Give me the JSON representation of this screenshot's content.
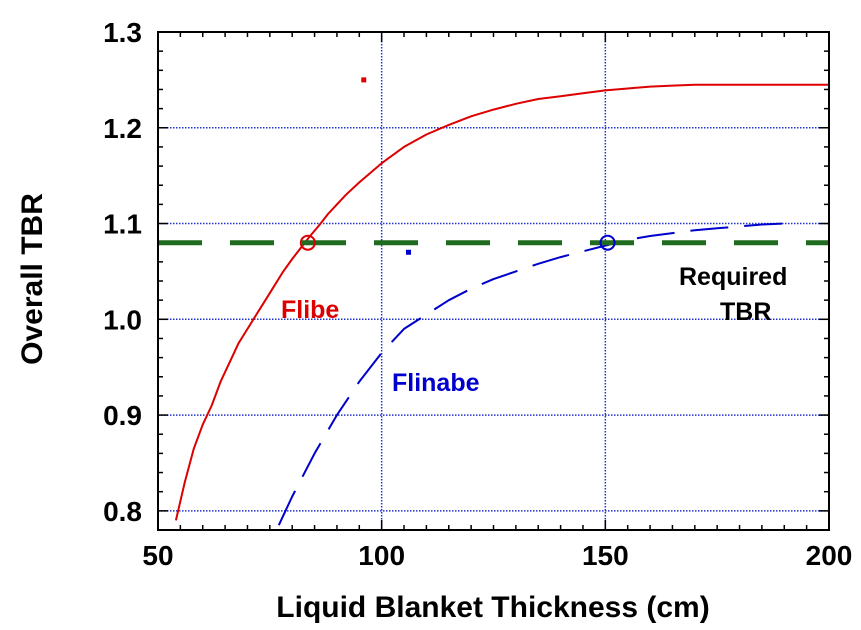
{
  "chart_data": {
    "type": "line",
    "xlabel": "Liquid Blanket Thickness (cm)",
    "ylabel": "Overall TBR",
    "xlim": [
      50,
      200
    ],
    "ylim": [
      0.78,
      1.3
    ],
    "x_ticks": [
      50,
      100,
      150,
      200
    ],
    "x_tick_labels": [
      "50",
      "100",
      "150",
      "200"
    ],
    "y_ticks": [
      0.8,
      0.9,
      1.0,
      1.1,
      1.2,
      1.3
    ],
    "y_tick_labels": [
      "0.8",
      "0.9",
      "1.0",
      "1.1",
      "1.2",
      "1.3"
    ],
    "grid": true,
    "series": [
      {
        "name": "Flibe",
        "color": "#dd0000",
        "style": "solid",
        "x": [
          54,
          56,
          58,
          60,
          62,
          64,
          66,
          68,
          70,
          72,
          74,
          76,
          78,
          80,
          82,
          84,
          86,
          88,
          90,
          92,
          95,
          100,
          105,
          110,
          115,
          120,
          125,
          130,
          135,
          140,
          145,
          150,
          155,
          160,
          165,
          170,
          180,
          190,
          200
        ],
        "y": [
          0.79,
          0.83,
          0.865,
          0.89,
          0.91,
          0.935,
          0.955,
          0.975,
          0.99,
          1.005,
          1.02,
          1.035,
          1.05,
          1.063,
          1.075,
          1.087,
          1.098,
          1.11,
          1.12,
          1.13,
          1.143,
          1.163,
          1.18,
          1.193,
          1.203,
          1.212,
          1.219,
          1.225,
          1.23,
          1.233,
          1.236,
          1.239,
          1.241,
          1.243,
          1.244,
          1.245,
          1.245,
          1.245,
          1.245
        ]
      },
      {
        "name": "Flinabe",
        "color": "#0000cc",
        "style": "dashed",
        "x": [
          77,
          80,
          85,
          90,
          95,
          100,
          105,
          110,
          115,
          120,
          125,
          130,
          135,
          140,
          145,
          150,
          155,
          160,
          165,
          170,
          175,
          180,
          185,
          190
        ],
        "y": [
          0.785,
          0.815,
          0.86,
          0.9,
          0.935,
          0.965,
          0.99,
          1.005,
          1.02,
          1.032,
          1.042,
          1.05,
          1.058,
          1.065,
          1.071,
          1.077,
          1.083,
          1.087,
          1.09,
          1.093,
          1.095,
          1.097,
          1.099,
          1.1
        ]
      },
      {
        "name": "Required TBR",
        "color": "#1f6b1f",
        "style": "long-dash",
        "x": [
          50,
          200
        ],
        "y": [
          1.08,
          1.08
        ]
      }
    ],
    "markers": [
      {
        "series": "Flibe",
        "x": 83.5,
        "y": 1.08,
        "color": "#dd0000"
      },
      {
        "series": "Flinabe",
        "x": 150.5,
        "y": 1.08,
        "color": "#0000cc"
      }
    ],
    "stray_points": [
      {
        "x": 96,
        "y": 1.25,
        "color": "#dd0000"
      },
      {
        "x": 106,
        "y": 1.07,
        "color": "#0000cc"
      }
    ],
    "annotations": [
      {
        "id": "flibe",
        "text": "Flibe",
        "color": "#dd0000"
      },
      {
        "id": "flinabe",
        "text": "Flinabe",
        "color": "#0000cc"
      },
      {
        "id": "required",
        "lines": [
          "Required",
          "TBR"
        ],
        "color": "#000000"
      }
    ]
  }
}
